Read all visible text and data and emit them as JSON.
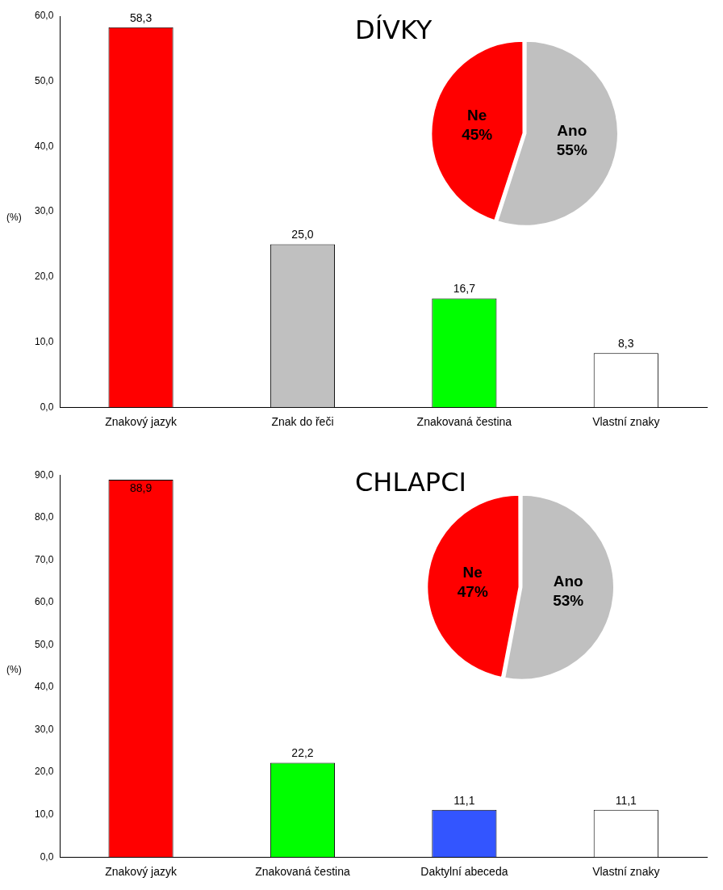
{
  "chart_data": [
    {
      "type": "bar",
      "title": "DÍVKY",
      "ylabel": "(%)",
      "categories": [
        "Znakový jazyk",
        "Znak do řeči",
        "Znakovaná čestina",
        "Vlastní znaky"
      ],
      "values": [
        58.3,
        25.0,
        16.7,
        8.3
      ],
      "colors": [
        "#ff0000",
        "#c0c0c0",
        "#00ff00",
        "#ffffff"
      ],
      "value_labels": [
        "58,3",
        "25,0",
        "16,7",
        "8,3"
      ],
      "ylim": [
        0,
        60
      ],
      "yticks": [
        {
          "value": 0,
          "label": "0,0"
        },
        {
          "value": 10,
          "label": "10,0"
        },
        {
          "value": 20,
          "label": "20,0"
        },
        {
          "value": 30,
          "label": "30,0"
        },
        {
          "value": 40,
          "label": "40,0"
        },
        {
          "value": 50,
          "label": "50,0"
        },
        {
          "value": 60,
          "label": "60,0"
        }
      ],
      "grid": false,
      "legend": false
    },
    {
      "type": "pie",
      "categories": [
        "Ano",
        "Ne"
      ],
      "values": [
        55,
        45
      ],
      "colors": [
        "#c0c0c0",
        "#ff0000"
      ],
      "value_labels": [
        "55%",
        "45%"
      ],
      "legend": false
    },
    {
      "type": "bar",
      "title": "CHLAPCI",
      "ylabel": "(%)",
      "categories": [
        "Znakový jazyk",
        "Znakovaná čestina",
        "Daktylní abeceda",
        "Vlastní znaky"
      ],
      "values": [
        88.9,
        22.2,
        11.1,
        11.1
      ],
      "colors": [
        "#ff0000",
        "#00ff00",
        "#3355ff",
        "#ffffff"
      ],
      "value_labels": [
        "88,9",
        "22,2",
        "11,1",
        "11,1"
      ],
      "ylim": [
        0,
        90
      ],
      "yticks": [
        {
          "value": 0,
          "label": "0,0"
        },
        {
          "value": 10,
          "label": "10,0"
        },
        {
          "value": 20,
          "label": "20,0"
        },
        {
          "value": 30,
          "label": "30,0"
        },
        {
          "value": 40,
          "label": "40,0"
        },
        {
          "value": 50,
          "label": "50,0"
        },
        {
          "value": 60,
          "label": "60,0"
        },
        {
          "value": 70,
          "label": "70,0"
        },
        {
          "value": 80,
          "label": "80,0"
        },
        {
          "value": 90,
          "label": "90,0"
        }
      ],
      "grid": false,
      "legend": false
    },
    {
      "type": "pie",
      "categories": [
        "Ano",
        "Ne"
      ],
      "values": [
        53,
        47
      ],
      "colors": [
        "#c0c0c0",
        "#ff0000"
      ],
      "value_labels": [
        "53%",
        "47%"
      ],
      "legend": false
    }
  ]
}
